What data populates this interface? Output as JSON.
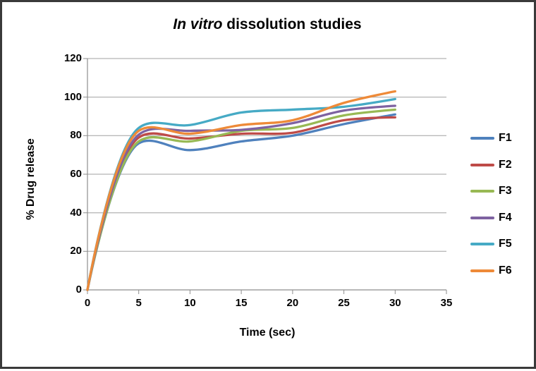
{
  "frame": {
    "background": "#ffffff",
    "border_color": "#3a3a3a"
  },
  "chart_data": {
    "type": "line",
    "smooth": true,
    "title_italic": "In vitro",
    "title_regular": " dissolution studies",
    "xlabel": "Time (sec)",
    "ylabel": "% Drug release",
    "xlim": [
      0,
      35
    ],
    "ylim": [
      0,
      120
    ],
    "x_ticks": [
      0,
      5,
      10,
      15,
      20,
      25,
      30,
      35
    ],
    "y_ticks": [
      0,
      20,
      40,
      60,
      80,
      100,
      120
    ],
    "grid": "horizontal",
    "gridline_color": "#a0a0a0",
    "axis_color": "#8e8e8e",
    "text_color": "#000000",
    "legend_position": "right",
    "x": [
      0,
      5,
      10,
      15,
      20,
      25,
      30
    ],
    "series": [
      {
        "name": "F1",
        "color": "#4F81BD",
        "values": [
          0,
          76,
          72.5,
          77,
          80,
          86,
          91
        ]
      },
      {
        "name": "F2",
        "color": "#BE4B48",
        "values": [
          0,
          79,
          78.5,
          81,
          81.5,
          88,
          89.5
        ]
      },
      {
        "name": "F3",
        "color": "#98B954",
        "values": [
          0,
          77,
          77,
          82.5,
          84,
          90.5,
          93.5
        ]
      },
      {
        "name": "F4",
        "color": "#7E62A1",
        "values": [
          0,
          80.5,
          82.5,
          83,
          86.5,
          93,
          95.5
        ]
      },
      {
        "name": "F5",
        "color": "#46AAC5",
        "values": [
          0,
          84,
          85.5,
          92,
          93.5,
          95,
          99
        ]
      },
      {
        "name": "F6",
        "color": "#EE8A38",
        "values": [
          0,
          82.5,
          81,
          85.5,
          88,
          97,
          103
        ]
      }
    ]
  }
}
